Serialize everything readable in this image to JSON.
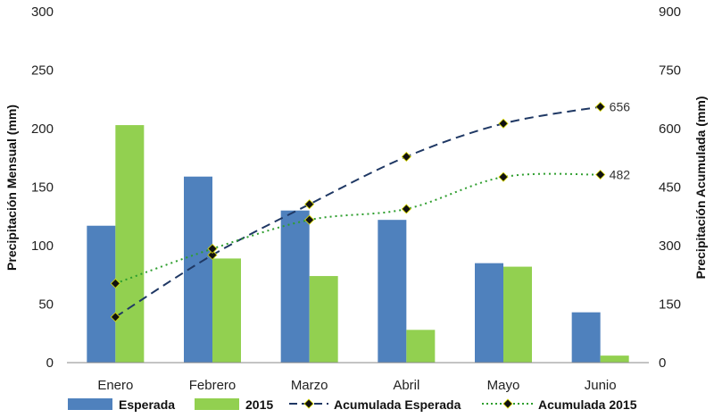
{
  "chart_data": {
    "type": "bar+line",
    "categories": [
      "Enero",
      "Febrero",
      "Marzo",
      "Abril",
      "Mayo",
      "Junio"
    ],
    "bar_series": [
      {
        "name": "Esperada",
        "values": [
          117,
          159,
          130,
          122,
          85,
          43
        ],
        "color": "#4F81BD",
        "axis": "left"
      },
      {
        "name": "2015",
        "values": [
          203,
          89,
          74,
          28,
          82,
          6
        ],
        "color": "#92D050",
        "axis": "left"
      }
    ],
    "line_series": [
      {
        "name": "Acumulada Esperada",
        "values": [
          117,
          276,
          406,
          528,
          613,
          656
        ],
        "color": "#1F3864",
        "style": "dashed",
        "axis": "right"
      },
      {
        "name": "Acumulada 2015",
        "values": [
          203,
          292,
          366,
          394,
          476,
          482
        ],
        "color": "#2E9E2E",
        "style": "dotted",
        "axis": "right"
      }
    ],
    "data_labels": [
      "656",
      "482"
    ],
    "ylabel": "Precipitación Mensual (mm)",
    "y2label": "Precipitación Acumulada (mm)",
    "ylim": [
      0,
      300
    ],
    "y2lim": [
      0,
      900
    ],
    "yticks": [
      "0",
      "50",
      "100",
      "150",
      "200",
      "250",
      "300"
    ],
    "y2ticks": [
      "0",
      "150",
      "300",
      "450",
      "600",
      "750",
      "900"
    ],
    "grid": false,
    "legend_position": "bottom"
  }
}
